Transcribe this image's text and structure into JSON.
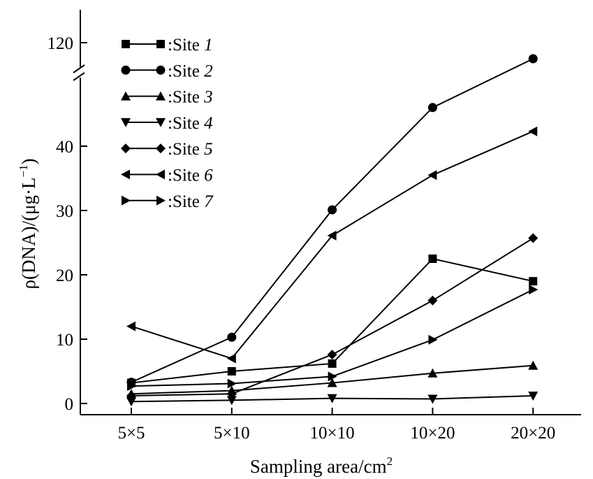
{
  "chart_data": {
    "type": "line",
    "xlabel": "Sampling area/cm",
    "xlabel_sup": "2",
    "ylabel": "ρ(DNA)/(μg·L",
    "ylabel_sup": "−1",
    "ylabel_end": ")",
    "categories": [
      "5×5",
      "5×10",
      "10×10",
      "10×20",
      "20×20"
    ],
    "y_ticks_lower": [
      0,
      10,
      20,
      30,
      40
    ],
    "y_ticks_upper": [
      120
    ],
    "y_axis_break": true,
    "ylim_lower": [
      0,
      48
    ],
    "ylim_upper": [
      110,
      126
    ],
    "legend_position": "top-left",
    "series": [
      {
        "name": ":Site ",
        "num": "1",
        "marker": "square",
        "values": [
          3.2,
          5.0,
          6.2,
          22.5,
          19.0
        ]
      },
      {
        "name": ":Site ",
        "num": "2",
        "marker": "circle",
        "values": [
          3.3,
          10.3,
          30.1,
          46.0,
          110.0
        ]
      },
      {
        "name": ":Site ",
        "num": "3",
        "marker": "triangle-up",
        "values": [
          1.5,
          2.0,
          3.2,
          4.7,
          5.9
        ]
      },
      {
        "name": ":Site ",
        "num": "4",
        "marker": "triangle-down",
        "values": [
          0.3,
          0.5,
          0.8,
          0.7,
          1.2
        ]
      },
      {
        "name": ":Site ",
        "num": "5",
        "marker": "diamond",
        "values": [
          1.2,
          1.5,
          7.6,
          16.0,
          25.7
        ]
      },
      {
        "name": ":Site ",
        "num": "6",
        "marker": "triangle-left",
        "values": [
          12.0,
          7.0,
          26.1,
          35.5,
          42.3
        ]
      },
      {
        "name": ":Site ",
        "num": "7",
        "marker": "triangle-right",
        "values": [
          2.7,
          3.1,
          4.2,
          9.9,
          17.7
        ]
      }
    ]
  }
}
